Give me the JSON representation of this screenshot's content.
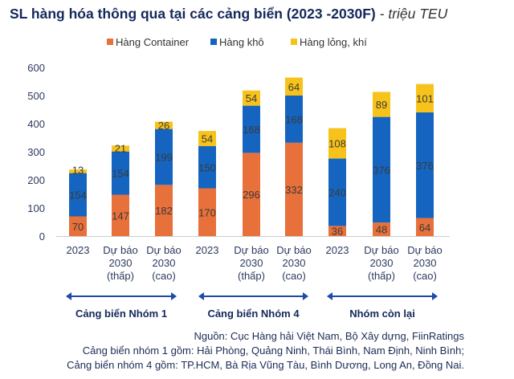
{
  "title": "SL hàng hóa thông qua tại các cảng biển (2023 -2030F)",
  "unit": "- triệu TEU",
  "chart_data": {
    "type": "bar",
    "stacked": true,
    "categories": [
      "2023",
      "Dự báo 2030 (thấp)",
      "Dự báo 2030 (cao)",
      "2023",
      "Dự báo 2030 (thấp)",
      "Dự báo 2030 (cao)",
      "2023",
      "Dự báo 2030 (thấp)",
      "Dự báo 2030 (cao)"
    ],
    "category_lines": [
      [
        "2023"
      ],
      [
        "Dự báo",
        "2030",
        "(thấp)"
      ],
      [
        "Dự báo",
        "2030",
        "(cao)"
      ],
      [
        "2023"
      ],
      [
        "Dự báo",
        "2030",
        "(thấp)"
      ],
      [
        "Dự báo",
        "2030",
        "(cao)"
      ],
      [
        "2023"
      ],
      [
        "Dự báo",
        "2030",
        "(thấp)"
      ],
      [
        "Dự báo",
        "2030",
        "(cao)"
      ]
    ],
    "series": [
      {
        "name": "Hàng Container",
        "color": "#e8703a",
        "values": [
          70,
          147,
          182,
          170,
          296,
          332,
          36,
          48,
          64
        ]
      },
      {
        "name": "Hàng khô",
        "color": "#1565c0",
        "values": [
          154,
          154,
          199,
          150,
          168,
          168,
          240,
          376,
          376
        ]
      },
      {
        "name": "Hàng lỏng, khí",
        "color": "#f7c31b",
        "values": [
          13,
          21,
          26,
          54,
          54,
          64,
          108,
          89,
          101
        ]
      }
    ],
    "ylim": [
      0,
      600
    ],
    "yticks": [
      0,
      100,
      200,
      300,
      400,
      500,
      600
    ],
    "legend": "top-center",
    "grid": false,
    "groups": [
      {
        "label": "Cảng biển Nhóm 1"
      },
      {
        "label": "Cảng biển Nhóm 4"
      },
      {
        "label": "Nhóm còn lại"
      }
    ]
  },
  "notes": [
    "Nguồn: Cục Hàng hải Việt Nam, Bộ Xây dựng, FiinRatings",
    "Cảng biển nhóm 1 gồm: Hải Phòng, Quảng Ninh, Thái Bình, Nam Định, Ninh Bình;",
    "Cảng biển nhóm 4 gồm: TP.HCM, Bà Rịa Vũng Tàu, Bình Dương, Long An, Đồng Nai."
  ]
}
